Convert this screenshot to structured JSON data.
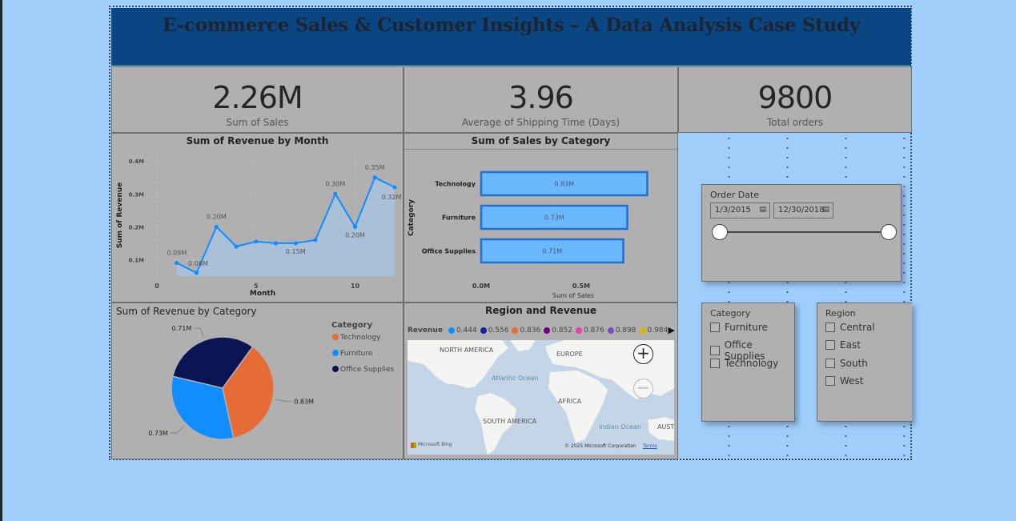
{
  "page": {
    "title": "E-commerce Sales & Customer Insights – A Data Analysis Case Study"
  },
  "kpis": [
    {
      "value": "2.26M",
      "label": "Sum of Sales"
    },
    {
      "value": "3.96",
      "label": "Average of Shipping Time (Days)"
    },
    {
      "value": "9800",
      "label": "Total orders"
    }
  ],
  "revenue_by_month": {
    "title": "Sum of Revenue by Month",
    "xlabel": "Month",
    "ylabel": "Sum of Revenue",
    "yticks": [
      "0.1M",
      "0.2M",
      "0.3M",
      "0.4M"
    ],
    "xticks": [
      "0",
      "5",
      "10"
    ]
  },
  "sales_by_category": {
    "title": "Sum of Sales by Category",
    "xlabel": "Sum of Sales",
    "ylabel": "Category",
    "xticks": [
      "0.0M",
      "0.5M"
    ]
  },
  "revenue_by_category": {
    "title": "Sum of Revenue by Category",
    "legend_title": "Category"
  },
  "map": {
    "title": "Region and Revenue",
    "legend_title": "Revenue",
    "legend": [
      {
        "label": "0.444",
        "color": "#118dff"
      },
      {
        "label": "0.556",
        "color": "#12239e"
      },
      {
        "label": "0.836",
        "color": "#e66c37"
      },
      {
        "label": "0.852",
        "color": "#6b007b"
      },
      {
        "label": "0.876",
        "color": "#e044a7"
      },
      {
        "label": "0.898",
        "color": "#744ec2"
      },
      {
        "label": "0.984",
        "color": "#d9b300"
      }
    ],
    "labels": [
      "NORTH AMERICA",
      "EUROPE",
      "Atlantic Ocean",
      "AFRICA",
      "SOUTH AMERICA",
      "Indian Ocean",
      "AUST"
    ],
    "credit": "Microsoft Bing",
    "copyright": "© 2025 Microsoft Corporation",
    "terms": "Terms"
  },
  "order_date": {
    "title": "Order Date",
    "start": "1/3/2015",
    "end": "12/30/2018"
  },
  "category_slicer": {
    "title": "Category",
    "options": [
      "Furniture",
      "Office Supplies",
      "Technology"
    ]
  },
  "region_slicer": {
    "title": "Region",
    "options": [
      "Central",
      "East",
      "South",
      "West"
    ]
  },
  "chart_data": [
    {
      "type": "area",
      "title": "Sum of Revenue by Month",
      "xlabel": "Month",
      "ylabel": "Sum of Revenue",
      "x": [
        1,
        2,
        3,
        4,
        5,
        6,
        7,
        8,
        9,
        10,
        11,
        12
      ],
      "values": [
        0.09,
        0.06,
        0.2,
        0.14,
        0.155,
        0.15,
        0.15,
        0.16,
        0.3,
        0.2,
        0.35,
        0.32
      ],
      "data_labels": {
        "0": "0.09M",
        "1": "0.06M",
        "2": "0.20M",
        "6": "0.15M",
        "8": "0.30M",
        "9": "0.20M",
        "10": "0.35M",
        "11": "0.32M"
      },
      "xlim": [
        0,
        12
      ],
      "ylim": [
        0.05,
        0.42
      ],
      "color": "#118dff"
    },
    {
      "type": "bar",
      "title": "Sum of Sales by Category",
      "xlabel": "Sum of Sales",
      "ylabel": "Category",
      "categories": [
        "Technology",
        "Furniture",
        "Office Supplies"
      ],
      "values": [
        0.83,
        0.73,
        0.71
      ],
      "labels": [
        "0.83M",
        "0.73M",
        "0.71M"
      ],
      "xlim": [
        0,
        1.0
      ],
      "color": "#6ab8ff"
    },
    {
      "type": "pie",
      "title": "Sum of Revenue by Category",
      "categories": [
        "Technology",
        "Furniture",
        "Office Supplies"
      ],
      "values": [
        0.83,
        0.73,
        0.71
      ],
      "labels": [
        "0.83M",
        "0.73M",
        "0.71M"
      ],
      "colors": [
        "#e66c37",
        "#118dff",
        "#0b1452"
      ]
    }
  ]
}
